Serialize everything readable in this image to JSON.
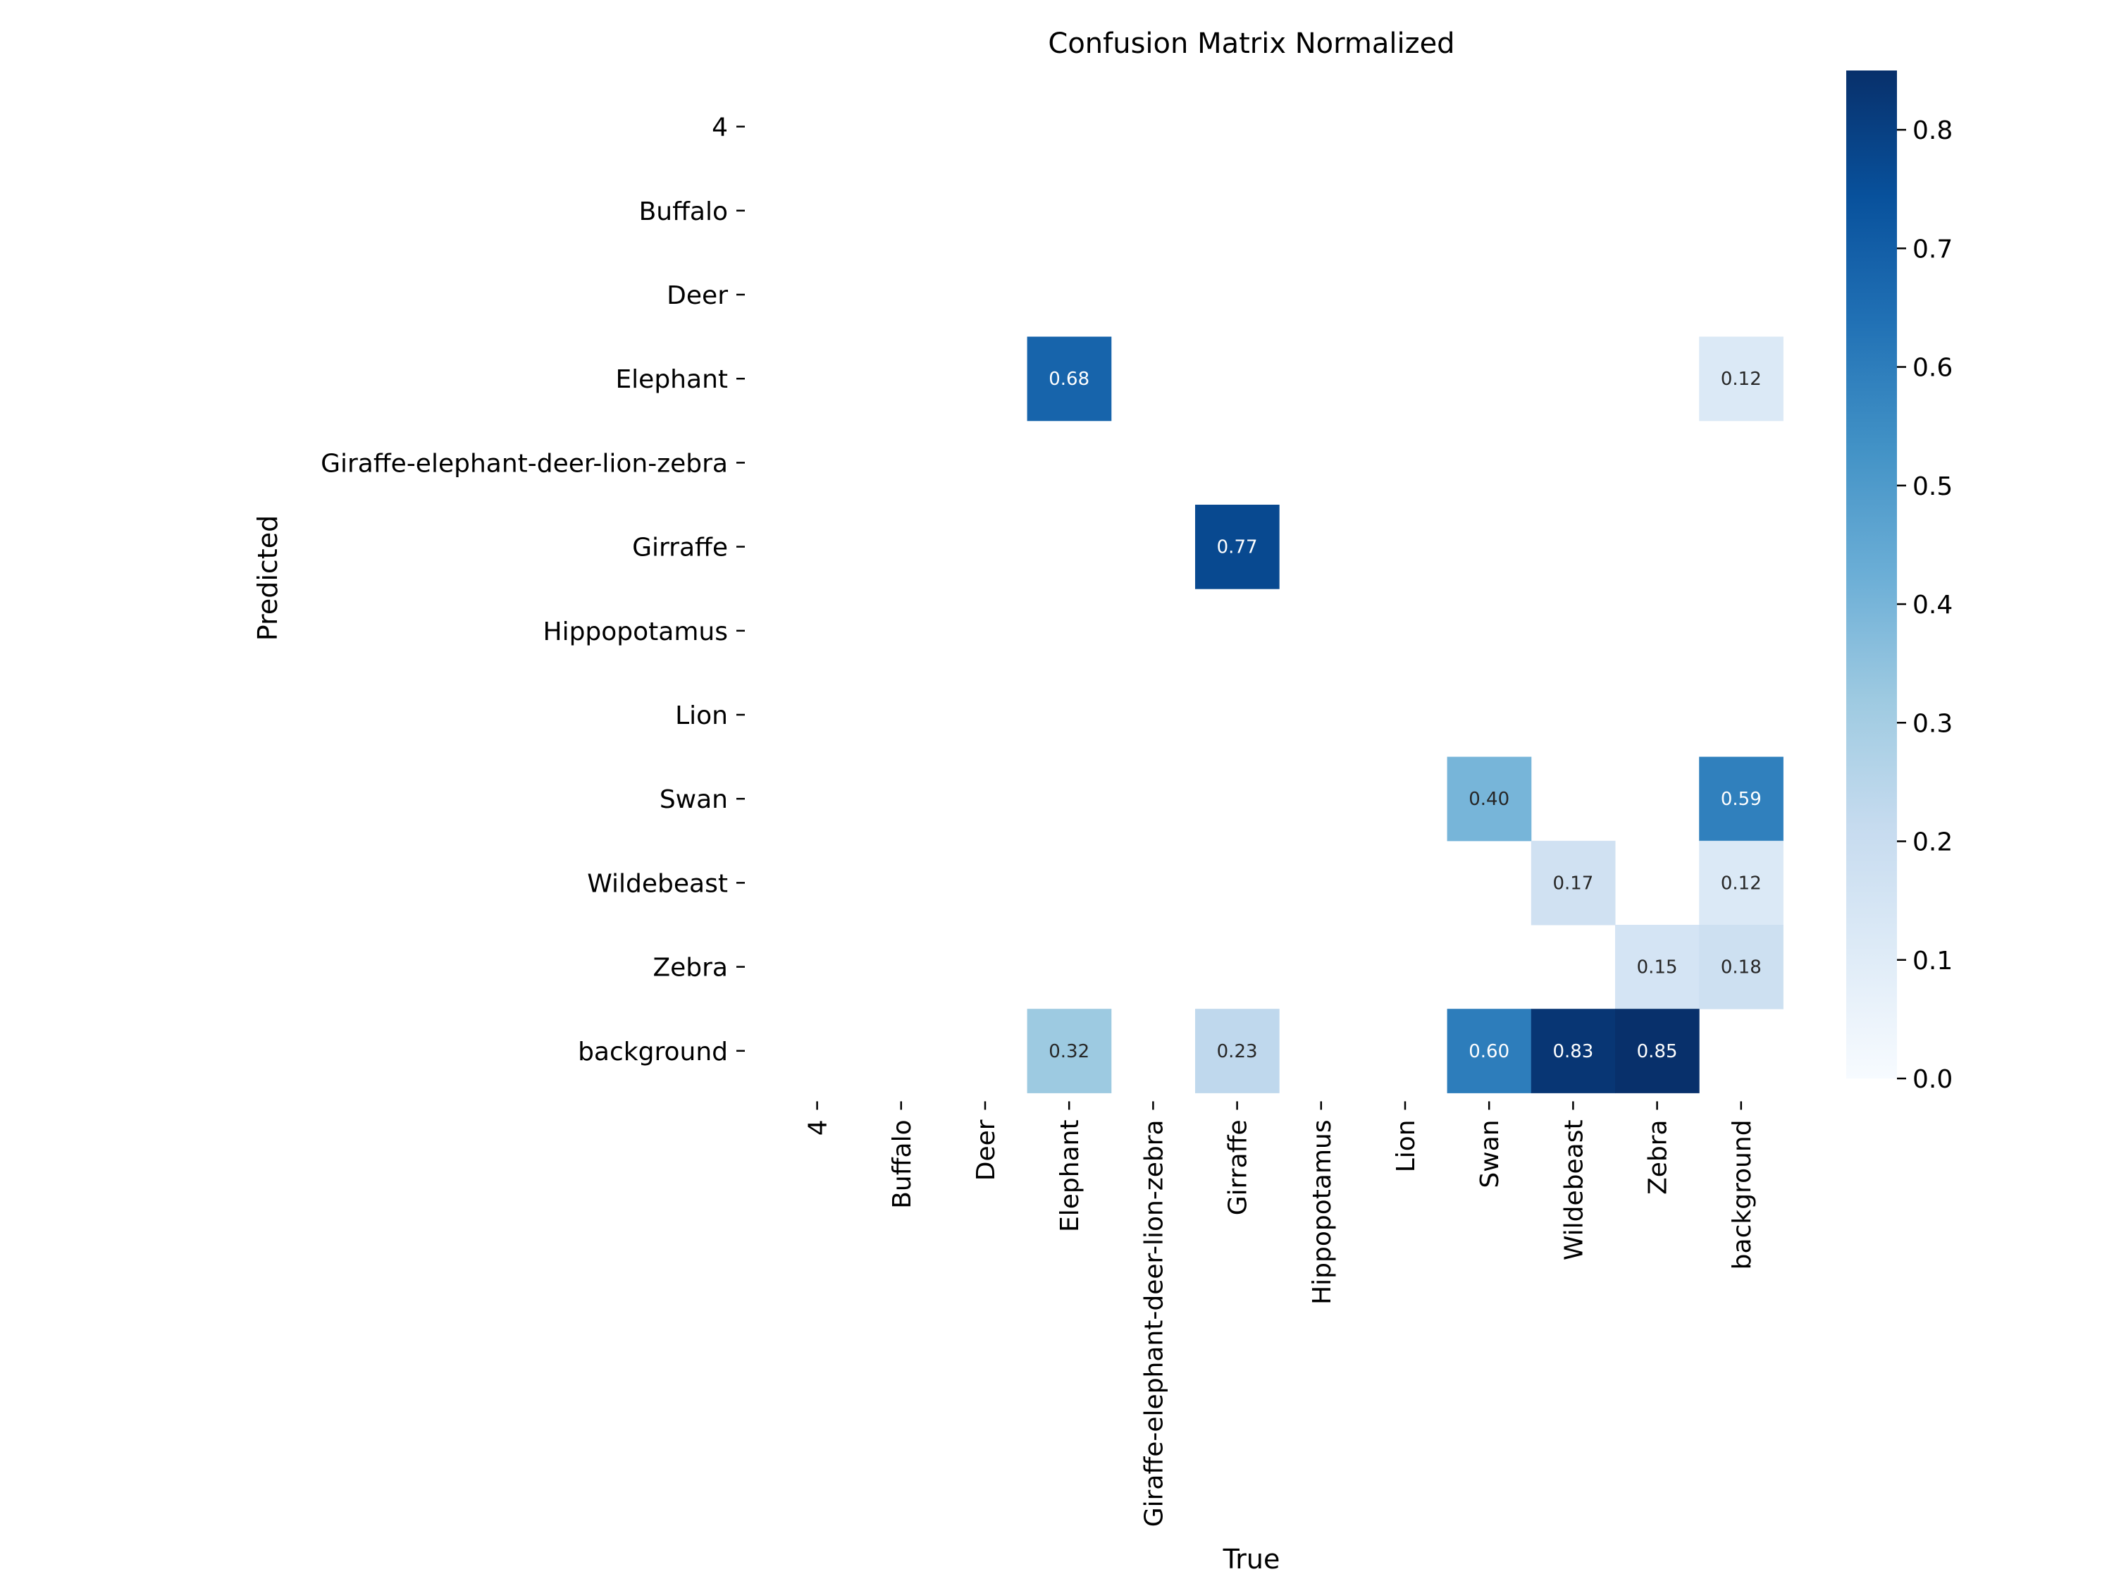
{
  "chart_data": {
    "type": "heatmap",
    "title": "Confusion Matrix Normalized",
    "xlabel": "True",
    "ylabel": "Predicted",
    "x_categories": [
      "4",
      "Buffalo",
      "Deer",
      "Elephant",
      "Giraffe-elephant-deer-lion-zebra",
      "Girraffe",
      "Hippopotamus",
      "Lion",
      "Swan",
      "Wildebeast",
      "Zebra",
      "background"
    ],
    "y_categories": [
      "4",
      "Buffalo",
      "Deer",
      "Elephant",
      "Giraffe-elephant-deer-lion-zebra",
      "Girraffe",
      "Hippopotamus",
      "Lion",
      "Swan",
      "Wildebeast",
      "Zebra",
      "background"
    ],
    "cells": [
      {
        "x": "Elephant",
        "y": "Elephant",
        "value": 0.68,
        "label": "0.68"
      },
      {
        "x": "background",
        "y": "Elephant",
        "value": 0.12,
        "label": "0.12"
      },
      {
        "x": "Girraffe",
        "y": "Girraffe",
        "value": 0.77,
        "label": "0.77"
      },
      {
        "x": "Swan",
        "y": "Swan",
        "value": 0.4,
        "label": "0.40"
      },
      {
        "x": "background",
        "y": "Swan",
        "value": 0.59,
        "label": "0.59"
      },
      {
        "x": "Wildebeast",
        "y": "Wildebeast",
        "value": 0.17,
        "label": "0.17"
      },
      {
        "x": "background",
        "y": "Wildebeast",
        "value": 0.12,
        "label": "0.12"
      },
      {
        "x": "Zebra",
        "y": "Zebra",
        "value": 0.15,
        "label": "0.15"
      },
      {
        "x": "background",
        "y": "Zebra",
        "value": 0.18,
        "label": "0.18"
      },
      {
        "x": "Elephant",
        "y": "background",
        "value": 0.32,
        "label": "0.32"
      },
      {
        "x": "Girraffe",
        "y": "background",
        "value": 0.23,
        "label": "0.23"
      },
      {
        "x": "Swan",
        "y": "background",
        "value": 0.6,
        "label": "0.60"
      },
      {
        "x": "Wildebeast",
        "y": "background",
        "value": 0.83,
        "label": "0.83"
      },
      {
        "x": "Zebra",
        "y": "background",
        "value": 0.85,
        "label": "0.85"
      }
    ],
    "colorbar": {
      "colormap": "Blues",
      "range": [
        0,
        0.85
      ],
      "ticks": [
        "0.0",
        "0.1",
        "0.2",
        "0.3",
        "0.4",
        "0.5",
        "0.6",
        "0.7",
        "0.8"
      ]
    },
    "grid": false
  }
}
